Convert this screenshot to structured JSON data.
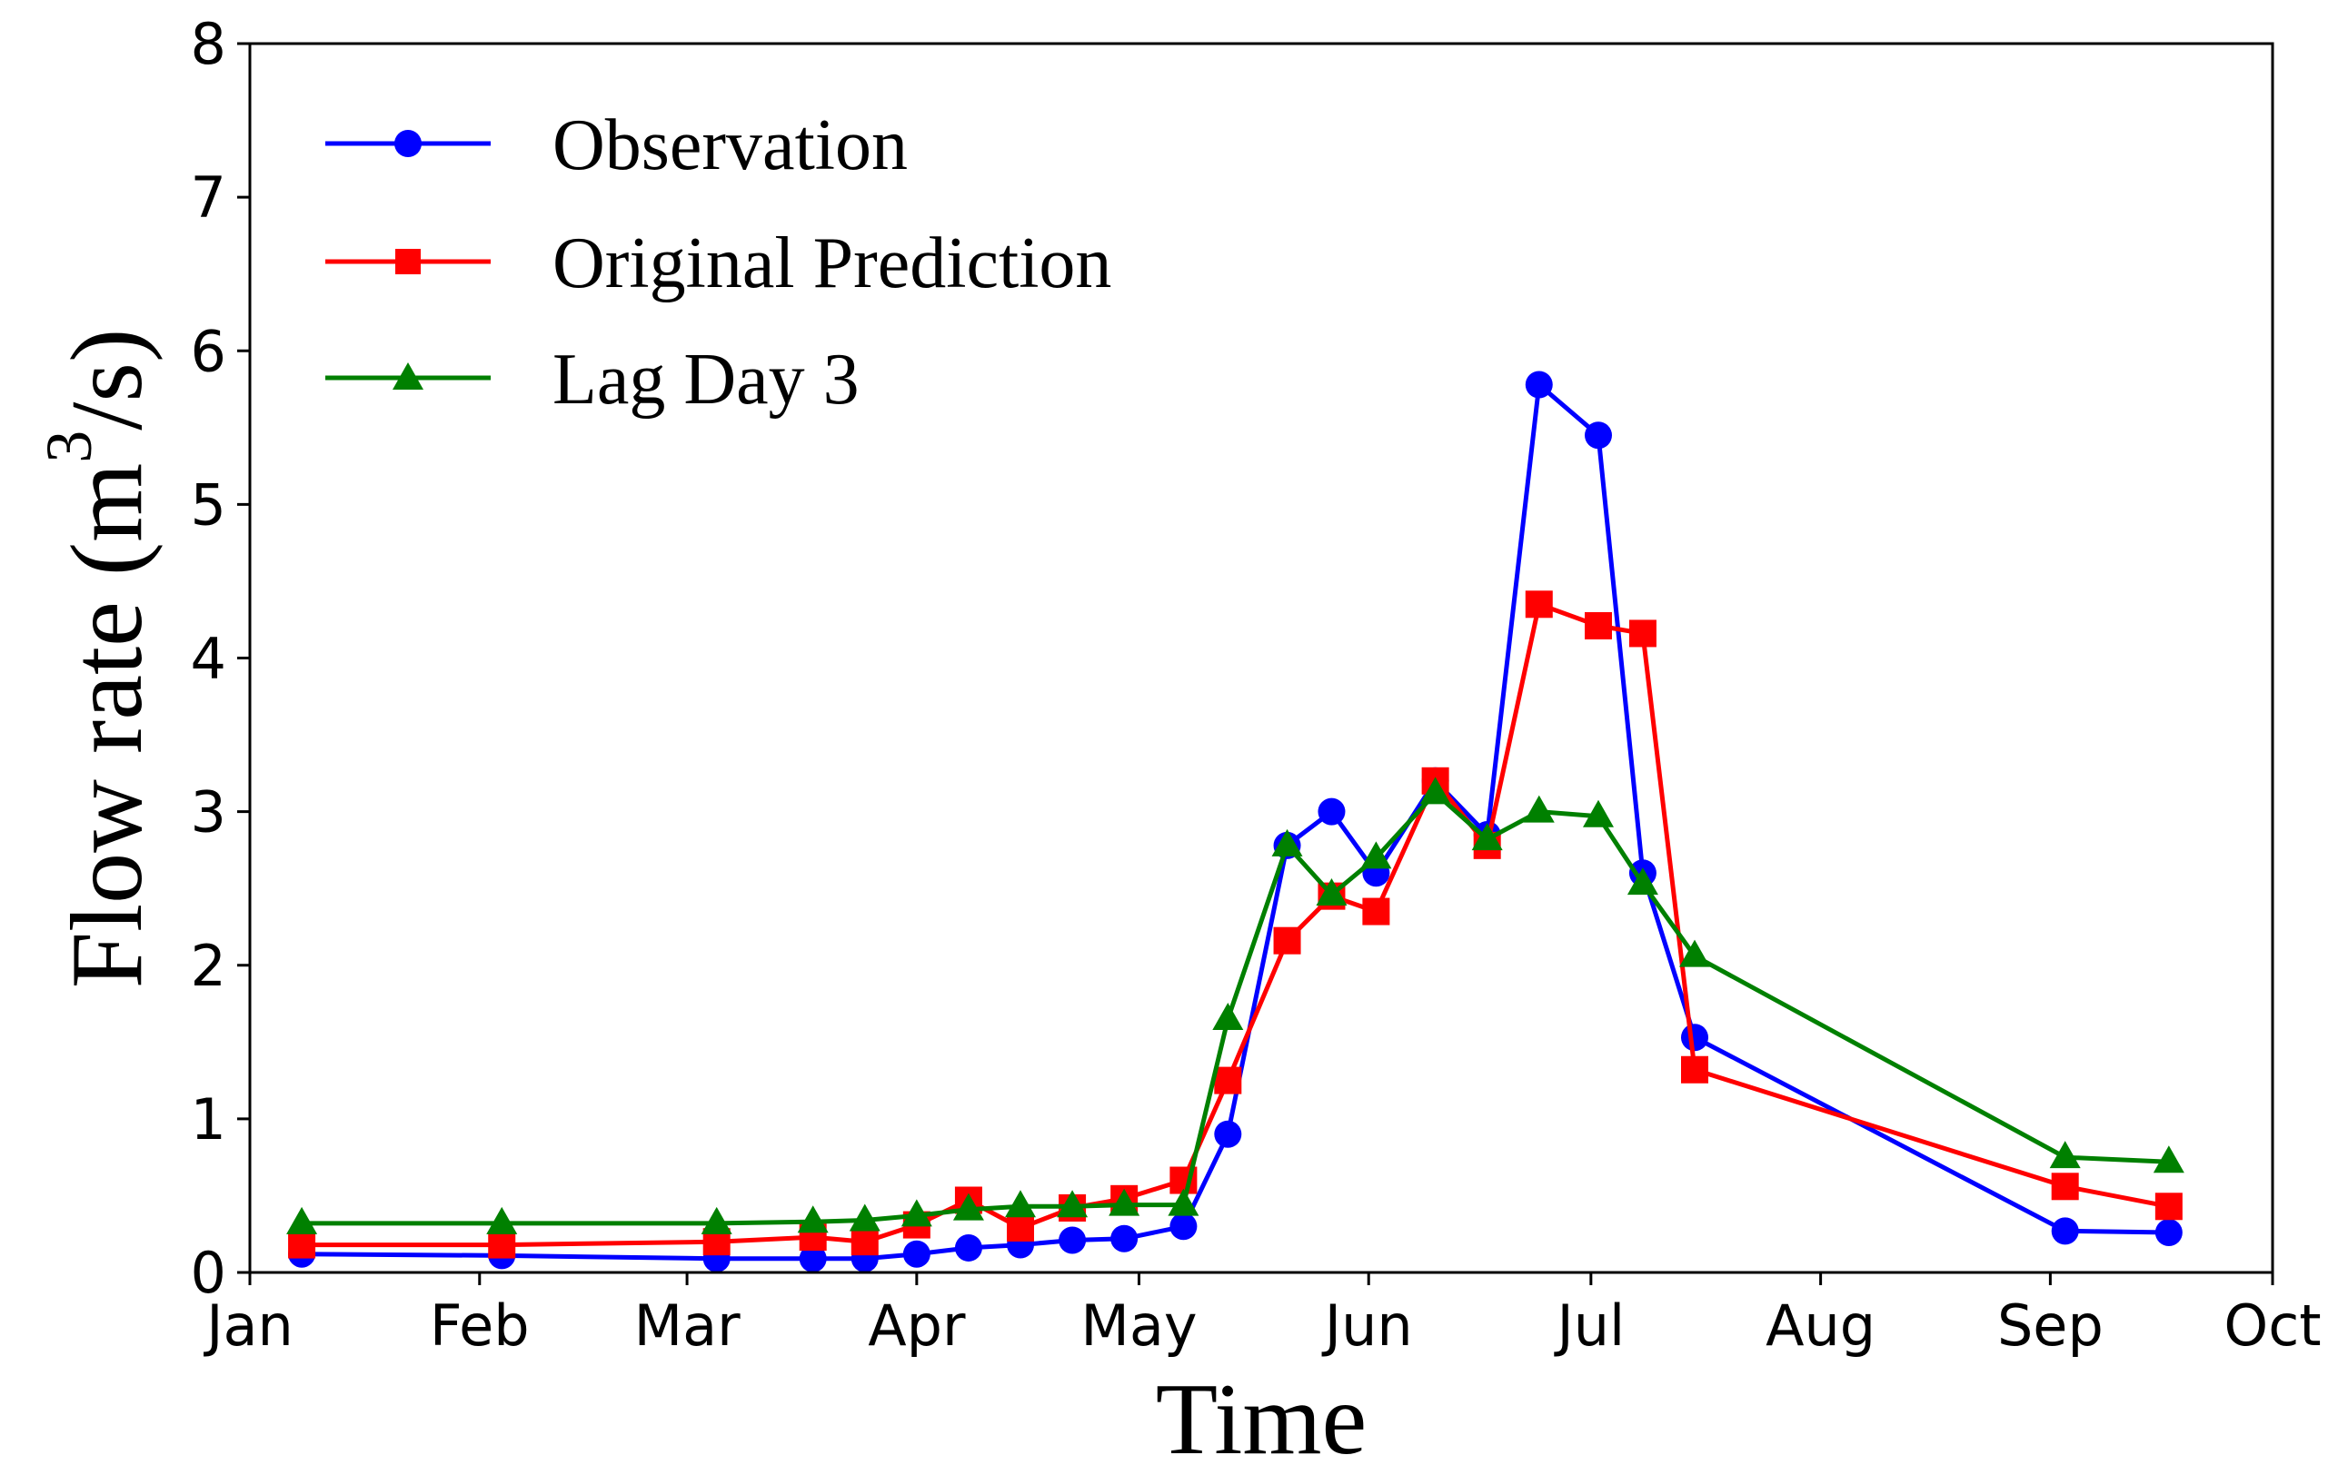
{
  "chart_data": {
    "type": "line",
    "title": "",
    "xlabel": "Time",
    "ylabel_main": "Flow rate (m",
    "ylabel_sup": "3",
    "ylabel_end": "/s)",
    "ylim": [
      0,
      8
    ],
    "xlim": [
      0,
      273
    ],
    "yticks": [
      0,
      1,
      2,
      3,
      4,
      5,
      6,
      7,
      8
    ],
    "xticks": [
      {
        "label": "Jan",
        "day": 0
      },
      {
        "label": "Feb",
        "day": 31
      },
      {
        "label": "Mar",
        "day": 59
      },
      {
        "label": "Apr",
        "day": 90
      },
      {
        "label": "May",
        "day": 120
      },
      {
        "label": "Jun",
        "day": 151
      },
      {
        "label": "Jul",
        "day": 181
      },
      {
        "label": "Aug",
        "day": 212
      },
      {
        "label": "Sep",
        "day": 243
      },
      {
        "label": "Oct",
        "day": 273
      }
    ],
    "legend_position": "top-left",
    "series": [
      {
        "name": "Observation",
        "color": "#0000ff",
        "marker": "circle",
        "x": [
          7,
          34,
          63,
          76,
          83,
          90,
          97,
          104,
          111,
          118,
          126,
          132,
          140,
          146,
          152,
          160,
          167,
          174,
          182,
          188,
          195,
          245,
          259
        ],
        "y": [
          0.12,
          0.11,
          0.09,
          0.09,
          0.09,
          0.12,
          0.16,
          0.18,
          0.21,
          0.22,
          0.3,
          0.9,
          2.78,
          3.0,
          2.6,
          3.2,
          2.85,
          5.78,
          5.45,
          2.6,
          1.53,
          0.27,
          0.26
        ]
      },
      {
        "name": "Original Prediction",
        "color": "#ff0000",
        "marker": "square",
        "x": [
          7,
          34,
          63,
          76,
          83,
          90,
          97,
          104,
          111,
          118,
          126,
          132,
          140,
          146,
          152,
          160,
          167,
          174,
          182,
          188,
          195,
          245,
          259
        ],
        "y": [
          0.18,
          0.18,
          0.2,
          0.23,
          0.2,
          0.31,
          0.47,
          0.29,
          0.42,
          0.48,
          0.6,
          1.25,
          2.16,
          2.45,
          2.35,
          3.2,
          2.78,
          4.35,
          4.21,
          4.16,
          1.32,
          0.56,
          0.43
        ]
      },
      {
        "name": "Lag Day 3",
        "color": "#008000",
        "marker": "triangle",
        "x": [
          7,
          34,
          63,
          76,
          83,
          90,
          97,
          104,
          111,
          118,
          126,
          132,
          140,
          146,
          152,
          160,
          167,
          174,
          182,
          188,
          195,
          245,
          259
        ],
        "y": [
          0.32,
          0.32,
          0.32,
          0.33,
          0.34,
          0.37,
          0.41,
          0.43,
          0.43,
          0.44,
          0.44,
          1.65,
          2.78,
          2.46,
          2.7,
          3.12,
          2.82,
          3.0,
          2.97,
          2.53,
          2.06,
          0.75,
          0.72
        ]
      }
    ]
  }
}
